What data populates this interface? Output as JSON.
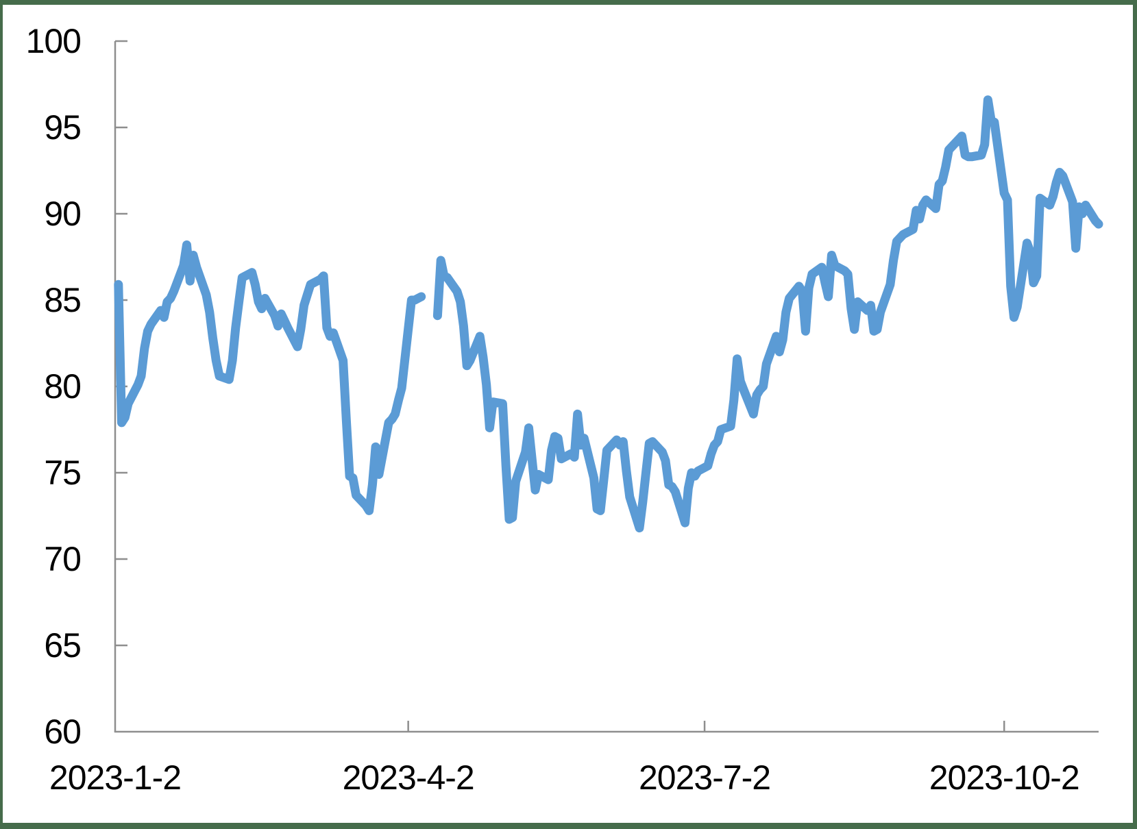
{
  "chart_data": {
    "type": "line",
    "title": "",
    "legend": "none",
    "grid": "off",
    "background_color": "#FFFFFF",
    "frame_border_color": "#466C4B",
    "axis_color": "#8E8E8E",
    "tick_style": "inside",
    "x_axis": {
      "unit": "date",
      "range_days_from_first_tick": [
        0,
        302
      ],
      "ticks": [
        {
          "day": 0,
          "label": "2023-1-2"
        },
        {
          "day": 90,
          "label": "2023-4-2"
        },
        {
          "day": 181,
          "label": "2023-7-2"
        },
        {
          "day": 273,
          "label": "2023-10-2"
        }
      ]
    },
    "y_axis": {
      "range": [
        60,
        100
      ],
      "tick_step": 5,
      "tick_labels": [
        "60",
        "65",
        "70",
        "75",
        "80",
        "85",
        "90",
        "95",
        "100"
      ]
    },
    "series": [
      {
        "color": "#5B9BD5",
        "stroke_width": 13,
        "note_gap": "null values around day 95-98 render as a visible gap in the line",
        "points": [
          [
            1,
            85.9
          ],
          [
            2,
            77.9
          ],
          [
            3,
            78.2
          ],
          [
            4,
            79.0
          ],
          [
            7,
            80.1
          ],
          [
            8,
            80.6
          ],
          [
            9,
            82.2
          ],
          [
            10,
            83.2
          ],
          [
            11,
            83.6
          ],
          [
            14,
            84.4
          ],
          [
            15,
            84.0
          ],
          [
            16,
            84.9
          ],
          [
            17,
            85.1
          ],
          [
            18,
            85.5
          ],
          [
            21,
            87.0
          ],
          [
            22,
            88.2
          ],
          [
            23,
            86.1
          ],
          [
            24,
            87.6
          ],
          [
            25,
            86.9
          ],
          [
            28,
            85.3
          ],
          [
            29,
            84.3
          ],
          [
            30,
            82.8
          ],
          [
            31,
            81.5
          ],
          [
            32,
            80.6
          ],
          [
            35,
            80.4
          ],
          [
            36,
            81.5
          ],
          [
            37,
            83.4
          ],
          [
            38,
            84.9
          ],
          [
            39,
            86.3
          ],
          [
            42,
            86.6
          ],
          [
            43,
            85.9
          ],
          [
            44,
            84.9
          ],
          [
            45,
            84.5
          ],
          [
            46,
            85.1
          ],
          [
            49,
            84.1
          ],
          [
            50,
            83.5
          ],
          [
            51,
            84.2
          ],
          [
            52,
            83.8
          ],
          [
            53,
            83.4
          ],
          [
            56,
            82.3
          ],
          [
            57,
            83.3
          ],
          [
            58,
            84.7
          ],
          [
            59,
            85.3
          ],
          [
            60,
            85.9
          ],
          [
            63,
            86.2
          ],
          [
            64,
            86.4
          ],
          [
            65,
            83.4
          ],
          [
            66,
            82.9
          ],
          [
            67,
            83.1
          ],
          [
            70,
            81.5
          ],
          [
            71,
            78.0
          ],
          [
            72,
            74.8
          ],
          [
            73,
            74.7
          ],
          [
            74,
            73.7
          ],
          [
            77,
            73.1
          ],
          [
            78,
            72.8
          ],
          [
            79,
            74.3
          ],
          [
            80,
            76.5
          ],
          [
            81,
            74.9
          ],
          [
            84,
            77.9
          ],
          [
            85,
            78.1
          ],
          [
            86,
            78.4
          ],
          [
            87,
            79.2
          ],
          [
            88,
            79.9
          ],
          [
            91,
            85.0
          ],
          [
            92,
            85.0
          ],
          [
            93,
            85.1
          ],
          [
            94,
            85.2
          ],
          [
            95,
            null
          ],
          [
            98,
            null
          ],
          [
            99,
            84.1
          ],
          [
            100,
            87.3
          ],
          [
            101,
            86.4
          ],
          [
            102,
            86.3
          ],
          [
            105,
            85.5
          ],
          [
            106,
            84.9
          ],
          [
            107,
            83.5
          ],
          [
            108,
            81.2
          ],
          [
            109,
            81.5
          ],
          [
            112,
            82.9
          ],
          [
            113,
            81.7
          ],
          [
            114,
            80.1
          ],
          [
            115,
            77.6
          ],
          [
            116,
            79.1
          ],
          [
            119,
            79.0
          ],
          [
            120,
            75.4
          ],
          [
            121,
            72.3
          ],
          [
            122,
            72.4
          ],
          [
            123,
            74.5
          ],
          [
            126,
            76.2
          ],
          [
            127,
            77.6
          ],
          [
            128,
            75.8
          ],
          [
            129,
            74.0
          ],
          [
            130,
            74.9
          ],
          [
            133,
            74.6
          ],
          [
            134,
            76.3
          ],
          [
            135,
            77.1
          ],
          [
            136,
            77.0
          ],
          [
            137,
            75.8
          ],
          [
            140,
            76.1
          ],
          [
            141,
            75.9
          ],
          [
            142,
            78.4
          ],
          [
            143,
            76.6
          ],
          [
            144,
            77.0
          ],
          [
            147,
            74.7
          ],
          [
            148,
            72.9
          ],
          [
            149,
            72.8
          ],
          [
            150,
            74.5
          ],
          [
            151,
            76.3
          ],
          [
            154,
            76.9
          ],
          [
            155,
            76.6
          ],
          [
            156,
            76.8
          ],
          [
            157,
            75.1
          ],
          [
            158,
            73.6
          ],
          [
            161,
            71.8
          ],
          [
            162,
            73.3
          ],
          [
            163,
            75.0
          ],
          [
            164,
            76.7
          ],
          [
            165,
            76.8
          ],
          [
            168,
            76.2
          ],
          [
            169,
            75.7
          ],
          [
            170,
            74.3
          ],
          [
            171,
            74.2
          ],
          [
            172,
            73.9
          ],
          [
            175,
            72.1
          ],
          [
            176,
            74.1
          ],
          [
            177,
            75.0
          ],
          [
            178,
            74.8
          ],
          [
            179,
            75.1
          ],
          [
            182,
            75.4
          ],
          [
            183,
            76.1
          ],
          [
            184,
            76.6
          ],
          [
            185,
            76.8
          ],
          [
            186,
            77.5
          ],
          [
            189,
            77.7
          ],
          [
            190,
            79.2
          ],
          [
            191,
            81.6
          ],
          [
            192,
            80.3
          ],
          [
            193,
            79.8
          ],
          [
            196,
            78.4
          ],
          [
            197,
            79.5
          ],
          [
            198,
            79.8
          ],
          [
            199,
            80.0
          ],
          [
            200,
            81.3
          ],
          [
            203,
            82.9
          ],
          [
            204,
            82.0
          ],
          [
            205,
            82.7
          ],
          [
            206,
            84.3
          ],
          [
            207,
            85.1
          ],
          [
            210,
            85.8
          ],
          [
            211,
            85.5
          ],
          [
            212,
            83.2
          ],
          [
            213,
            85.7
          ],
          [
            214,
            86.5
          ],
          [
            217,
            86.9
          ],
          [
            218,
            86.0
          ],
          [
            219,
            85.2
          ],
          [
            220,
            87.6
          ],
          [
            221,
            87.0
          ],
          [
            224,
            86.7
          ],
          [
            225,
            86.5
          ],
          [
            226,
            84.5
          ],
          [
            227,
            83.3
          ],
          [
            228,
            84.9
          ],
          [
            231,
            84.4
          ],
          [
            232,
            84.7
          ],
          [
            233,
            83.2
          ],
          [
            234,
            83.3
          ],
          [
            235,
            84.3
          ],
          [
            238,
            85.9
          ],
          [
            239,
            87.3
          ],
          [
            240,
            88.4
          ],
          [
            241,
            88.6
          ],
          [
            242,
            88.8
          ],
          [
            245,
            89.1
          ],
          [
            246,
            90.2
          ],
          [
            247,
            89.7
          ],
          [
            248,
            90.5
          ],
          [
            249,
            90.8
          ],
          [
            252,
            90.3
          ],
          [
            253,
            91.7
          ],
          [
            254,
            91.9
          ],
          [
            255,
            92.7
          ],
          [
            256,
            93.7
          ],
          [
            259,
            94.3
          ],
          [
            260,
            94.5
          ],
          [
            261,
            93.4
          ],
          [
            262,
            93.3
          ],
          [
            263,
            93.3
          ],
          [
            266,
            93.4
          ],
          [
            267,
            94.0
          ],
          [
            268,
            96.6
          ],
          [
            269,
            95.4
          ],
          [
            270,
            95.3
          ],
          [
            273,
            91.2
          ],
          [
            274,
            90.8
          ],
          [
            275,
            85.8
          ],
          [
            276,
            84.0
          ],
          [
            277,
            84.6
          ],
          [
            280,
            88.3
          ],
          [
            281,
            87.8
          ],
          [
            282,
            86.0
          ],
          [
            283,
            86.4
          ],
          [
            284,
            90.9
          ],
          [
            287,
            90.5
          ],
          [
            288,
            91.0
          ],
          [
            289,
            91.8
          ],
          [
            290,
            92.4
          ],
          [
            291,
            92.2
          ],
          [
            294,
            90.7
          ],
          [
            295,
            88.0
          ],
          [
            296,
            90.4
          ],
          [
            297,
            90.0
          ],
          [
            298,
            90.5
          ],
          [
            301,
            89.6
          ],
          [
            302,
            89.4
          ]
        ]
      }
    ]
  }
}
